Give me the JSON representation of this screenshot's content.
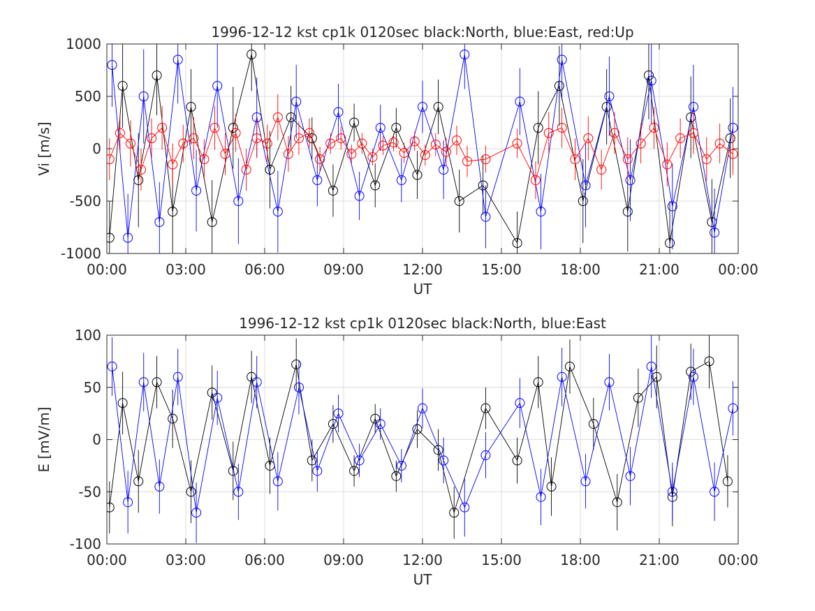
{
  "colors": {
    "north": "#000000",
    "east": "#0000ff",
    "up": "#ff0000",
    "grid": "#dcdcdc",
    "axis": "#262626"
  },
  "chart_data": [
    {
      "type": "scatter",
      "title": "1996-12-12 kst cp1k 0120sec black:North, blue:East, red:Up",
      "xlabel": "UT",
      "ylabel": "Vi [m/s]",
      "xlim": [
        0,
        24
      ],
      "ylim": [
        -1000,
        1000
      ],
      "grid": true,
      "xticks": [
        0,
        3,
        6,
        9,
        12,
        15,
        18,
        21,
        24
      ],
      "xtick_labels": [
        "00:00",
        "03:00",
        "06:00",
        "09:00",
        "12:00",
        "15:00",
        "18:00",
        "21:00",
        "00:00"
      ],
      "yticks": [
        1000,
        500,
        0,
        -500,
        -1000
      ],
      "ytick_labels": [
        "1000",
        "500",
        "0",
        "-500",
        "-1000"
      ],
      "x_unit": "hours UT",
      "series": [
        {
          "name": "North",
          "color": "#000000",
          "x": [
            0.1,
            0.6,
            1.2,
            1.9,
            2.5,
            3.2,
            4.0,
            4.8,
            5.5,
            6.2,
            7.0,
            7.8,
            8.6,
            9.4,
            10.2,
            11.0,
            11.8,
            12.6,
            13.4,
            14.3,
            15.6,
            16.4,
            17.2,
            18.1,
            19.0,
            19.8,
            20.6,
            21.4,
            22.2,
            23.0,
            23.7
          ],
          "y": [
            -850,
            600,
            -300,
            700,
            -600,
            400,
            -700,
            200,
            900,
            -200,
            300,
            100,
            -400,
            250,
            -350,
            200,
            -250,
            400,
            -500,
            -350,
            -900,
            200,
            600,
            -500,
            400,
            -600,
            700,
            -900,
            300,
            -700,
            100
          ],
          "err": [
            350,
            400,
            450,
            380,
            420,
            360,
            400,
            390,
            350,
            370,
            300,
            200,
            250,
            180,
            210,
            190,
            230,
            260,
            300,
            280,
            300,
            350,
            380,
            400,
            360,
            380,
            420,
            400,
            390,
            410,
            380
          ]
        },
        {
          "name": "East",
          "color": "#0000ff",
          "x": [
            0.2,
            0.8,
            1.4,
            2.0,
            2.7,
            3.4,
            4.2,
            5.0,
            5.7,
            6.5,
            7.2,
            8.0,
            8.8,
            9.6,
            10.4,
            11.2,
            12.0,
            12.8,
            13.6,
            14.4,
            15.7,
            16.5,
            17.3,
            18.2,
            19.1,
            19.9,
            20.7,
            21.5,
            22.3,
            23.1,
            23.8
          ],
          "y": [
            800,
            -850,
            500,
            -700,
            850,
            -400,
            600,
            -500,
            300,
            -600,
            450,
            -300,
            350,
            -450,
            200,
            -300,
            400,
            -200,
            900,
            -650,
            450,
            -600,
            850,
            -350,
            500,
            -300,
            650,
            -550,
            400,
            -800,
            200
          ],
          "err": [
            400,
            420,
            450,
            380,
            420,
            390,
            400,
            410,
            380,
            390,
            350,
            250,
            270,
            230,
            220,
            210,
            250,
            280,
            330,
            300,
            320,
            360,
            390,
            400,
            380,
            390,
            420,
            410,
            400,
            420,
            390
          ]
        },
        {
          "name": "Up",
          "color": "#ff0000",
          "x": [
            0.1,
            0.5,
            0.9,
            1.3,
            1.7,
            2.1,
            2.5,
            2.9,
            3.3,
            3.7,
            4.1,
            4.5,
            4.9,
            5.3,
            5.7,
            6.1,
            6.5,
            6.9,
            7.3,
            7.7,
            8.1,
            8.5,
            8.9,
            9.3,
            9.7,
            10.1,
            10.5,
            10.9,
            11.3,
            11.7,
            12.1,
            12.5,
            12.9,
            13.3,
            13.7,
            14.4,
            15.6,
            16.3,
            16.8,
            17.3,
            17.8,
            18.3,
            18.8,
            19.3,
            19.8,
            20.3,
            20.8,
            21.3,
            21.8,
            22.3,
            22.8,
            23.3,
            23.8
          ],
          "y": [
            -100,
            150,
            50,
            -200,
            100,
            200,
            -150,
            50,
            100,
            -100,
            200,
            -50,
            150,
            -200,
            100,
            50,
            300,
            -50,
            100,
            150,
            -100,
            50,
            100,
            -50,
            50,
            -80,
            30,
            60,
            -40,
            70,
            -60,
            40,
            -30,
            80,
            -120,
            -100,
            50,
            -300,
            150,
            200,
            -100,
            100,
            -200,
            150,
            -100,
            50,
            200,
            -150,
            100,
            150,
            -100,
            50,
            -50
          ],
          "err": [
            200,
            180,
            220,
            200,
            190,
            210,
            200,
            180,
            200,
            190,
            210,
            200,
            180,
            200,
            190,
            180,
            220,
            170,
            160,
            140,
            120,
            100,
            110,
            90,
            100,
            80,
            90,
            85,
            95,
            90,
            100,
            110,
            130,
            140,
            150,
            130,
            140,
            180,
            200,
            190,
            200,
            210,
            190,
            200,
            210,
            190,
            200,
            210,
            190,
            200,
            210,
            190,
            200
          ]
        }
      ]
    },
    {
      "type": "scatter",
      "title": "1996-12-12 kst cp1k 0120sec black:North, blue:East",
      "xlabel": "UT",
      "ylabel": "E [mV/m]",
      "xlim": [
        0,
        24
      ],
      "ylim": [
        -100,
        100
      ],
      "grid": true,
      "xticks": [
        0,
        3,
        6,
        9,
        12,
        15,
        18,
        21,
        24
      ],
      "xtick_labels": [
        "00:00",
        "03:00",
        "06:00",
        "09:00",
        "12:00",
        "15:00",
        "18:00",
        "21:00",
        "00:00"
      ],
      "yticks": [
        100,
        50,
        0,
        -50,
        -100
      ],
      "ytick_labels": [
        "100",
        "50",
        "0",
        "-50",
        "-100"
      ],
      "x_unit": "hours UT",
      "series": [
        {
          "name": "North",
          "color": "#000000",
          "x": [
            0.1,
            0.6,
            1.2,
            1.9,
            2.5,
            3.2,
            4.0,
            4.8,
            5.5,
            6.2,
            7.2,
            7.8,
            8.6,
            9.4,
            10.2,
            11.0,
            11.8,
            12.6,
            13.2,
            14.4,
            15.6,
            16.4,
            16.9,
            17.6,
            18.5,
            19.4,
            20.2,
            20.9,
            21.5,
            22.2,
            22.9,
            23.6
          ],
          "y": [
            -65,
            35,
            -40,
            55,
            20,
            -50,
            45,
            -30,
            60,
            -25,
            72,
            -20,
            15,
            -30,
            20,
            -35,
            10,
            -10,
            -70,
            30,
            -20,
            55,
            -45,
            70,
            15,
            -60,
            40,
            60,
            -55,
            65,
            75,
            -40
          ],
          "err": [
            25,
            30,
            30,
            25,
            28,
            30,
            26,
            28,
            25,
            27,
            25,
            20,
            18,
            15,
            14,
            15,
            18,
            20,
            25,
            20,
            22,
            25,
            28,
            26,
            25,
            27,
            28,
            30,
            28,
            27,
            26,
            25
          ]
        },
        {
          "name": "East",
          "color": "#0000ff",
          "x": [
            0.2,
            0.8,
            1.4,
            2.0,
            2.7,
            3.4,
            4.2,
            5.0,
            5.7,
            6.5,
            7.3,
            8.0,
            8.8,
            9.6,
            10.4,
            11.2,
            12.0,
            12.8,
            13.6,
            14.4,
            15.7,
            16.5,
            17.3,
            18.2,
            19.1,
            19.9,
            20.7,
            21.5,
            22.3,
            23.1,
            23.8
          ],
          "y": [
            70,
            -60,
            55,
            -45,
            60,
            -70,
            40,
            -50,
            55,
            -40,
            50,
            -30,
            25,
            -20,
            15,
            -25,
            30,
            -20,
            -65,
            -15,
            35,
            -55,
            60,
            -40,
            55,
            -35,
            70,
            -50,
            60,
            -50,
            30
          ],
          "err": [
            28,
            30,
            28,
            26,
            27,
            29,
            26,
            27,
            25,
            28,
            26,
            20,
            18,
            16,
            15,
            16,
            19,
            22,
            28,
            22,
            24,
            27,
            28,
            26,
            27,
            28,
            30,
            28,
            27,
            28,
            26
          ]
        }
      ]
    }
  ]
}
